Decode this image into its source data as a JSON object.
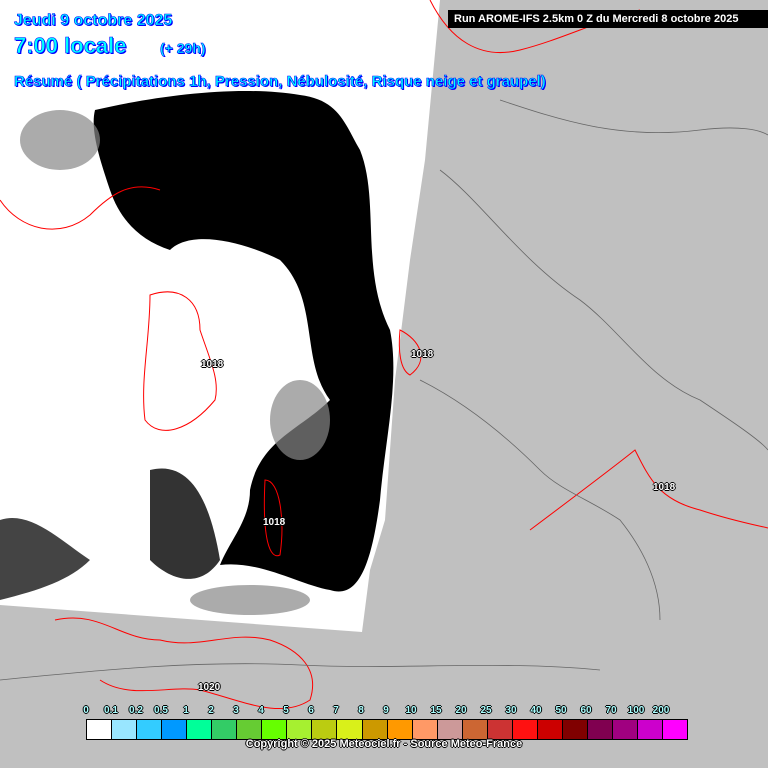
{
  "header": {
    "date": "Jeudi 9 octobre 2025",
    "time": "7:00 locale",
    "lead": "(+ 29h)",
    "summary": "Résumé ( Précipitations 1h, Pression, Nébulosité, Risque neige et graupel)",
    "run": "Run AROME-IFS 2.5km 0 Z du Mercredi 8 octobre 2025"
  },
  "pressure_labels": [
    "1018",
    "1018",
    "1018",
    "1018",
    "1020"
  ],
  "legend": {
    "ticks": [
      "0",
      "0.1",
      "0.2",
      "0.5",
      "1",
      "2",
      "3",
      "4",
      "5",
      "6",
      "7",
      "8",
      "9",
      "10",
      "15",
      "20",
      "25",
      "30",
      "40",
      "50",
      "60",
      "70",
      "100",
      "200"
    ],
    "colors": [
      "#ffffff",
      "#99e6ff",
      "#33ccff",
      "#0099ff",
      "#00ff99",
      "#33cc66",
      "#66cc33",
      "#66ff00",
      "#a6f030",
      "#bbcc11",
      "#d9f01a",
      "#cc9900",
      "#ff9900",
      "#ff9966",
      "#cc9999",
      "#cc6633",
      "#cc3333",
      "#ff1111",
      "#cc0000",
      "#800000",
      "#800050",
      "#a00080",
      "#cc00cc",
      "#ff00ff"
    ]
  },
  "copyright": "Copyright © 2025 Meteociel.fr - Source Meteo-France",
  "colors": {
    "background": "#c0c0c0",
    "isobar": "#ff0000",
    "cloud": "#000000",
    "title": "#00ffff"
  }
}
